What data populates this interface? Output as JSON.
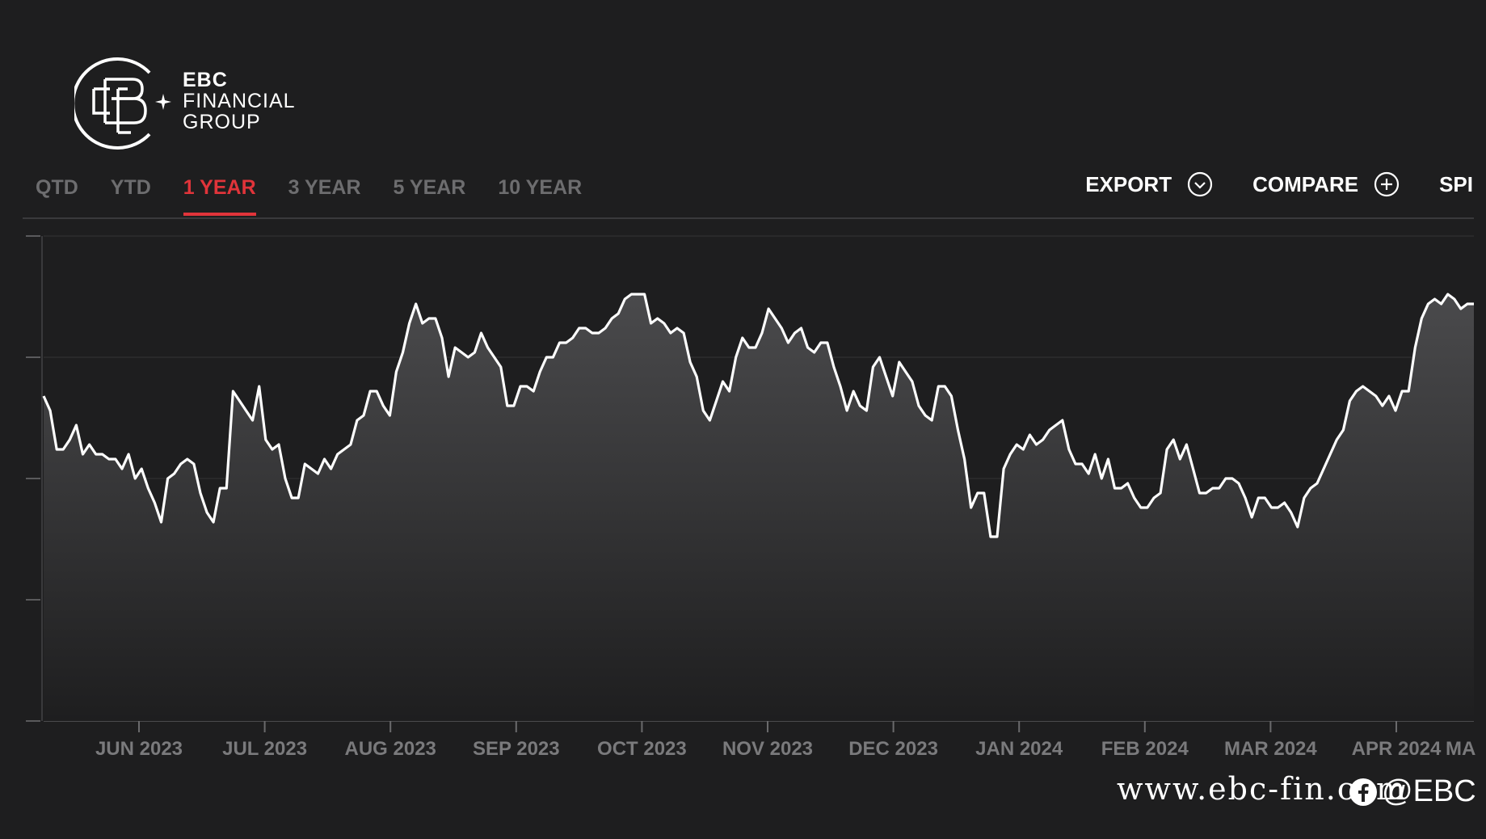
{
  "brand": {
    "line1": "EBC",
    "line2": "FINANCIAL",
    "line3": "GROUP"
  },
  "tabs": [
    {
      "label": "QTD",
      "active": false
    },
    {
      "label": "YTD",
      "active": false
    },
    {
      "label": "1 YEAR",
      "active": true
    },
    {
      "label": "3 YEAR",
      "active": false
    },
    {
      "label": "5 YEAR",
      "active": false
    },
    {
      "label": "10 YEAR",
      "active": false
    }
  ],
  "actions": {
    "export_label": "EXPORT",
    "export_icon": "chevron-down-circle-icon",
    "compare_label": "COMPARE",
    "compare_icon": "plus-circle-icon",
    "spread_label": "SPI"
  },
  "colors": {
    "background": "#1e1e1f",
    "line": "#ffffff",
    "accent": "#e0343a",
    "tab_inactive": "#6d6d6f",
    "axis_text": "#7a7a7c",
    "grid": "#343436"
  },
  "watermark": {
    "url": "www.ebc-fin.com",
    "handle": "@EBC",
    "social_icon": "facebook-icon"
  },
  "chart_data": {
    "type": "area",
    "title": "",
    "xlabel": "",
    "ylabel": "",
    "x_ticks": [
      "JUN 2023",
      "JUL 2023",
      "AUG 2023",
      "SEP 2023",
      "OCT 2023",
      "NOV 2023",
      "DEC 2023",
      "JAN 2024",
      "FEB 2024",
      "MAR 2024",
      "APR 2024",
      "MA"
    ],
    "y_tick_labels_visible": false,
    "y_tick_count": 5,
    "grid": "horizontal",
    "legend": "none",
    "ylim": [
      0,
      100
    ],
    "series": [
      {
        "values": [
          67,
          64,
          56,
          56,
          58,
          61,
          55,
          57,
          55,
          55,
          54,
          54,
          52,
          55,
          50,
          52,
          48,
          45,
          41,
          50,
          51,
          53,
          54,
          53,
          47,
          43,
          41,
          48,
          48,
          68,
          66,
          64,
          62,
          69,
          58,
          56,
          57,
          50,
          46,
          46,
          53,
          52,
          51,
          54,
          52,
          55,
          56,
          57,
          62,
          63,
          68,
          68,
          65,
          63,
          72,
          76,
          82,
          86,
          82,
          83,
          83,
          79,
          71,
          77,
          76,
          75,
          76,
          80,
          77,
          75,
          73,
          65,
          65,
          69,
          69,
          68,
          72,
          75,
          75,
          78,
          78,
          79,
          81,
          81,
          80,
          80,
          81,
          83,
          84,
          87,
          88,
          88,
          88,
          82,
          83,
          82,
          80,
          81,
          80,
          74,
          71,
          64,
          62,
          66,
          70,
          68,
          75,
          79,
          77,
          77,
          80,
          85,
          83,
          81,
          78,
          80,
          81,
          77,
          76,
          78,
          78,
          73,
          69,
          64,
          68,
          65,
          64,
          73,
          75,
          71,
          67,
          74,
          72,
          70,
          65,
          63,
          62,
          69,
          69,
          67,
          60,
          54,
          44,
          47,
          47,
          38,
          38,
          52,
          55,
          57,
          56,
          59,
          57,
          58,
          60,
          61,
          62,
          56,
          53,
          53,
          51,
          55,
          50,
          54,
          48,
          48,
          49,
          46,
          44,
          44,
          46,
          47,
          56,
          58,
          54,
          57,
          52,
          47,
          47,
          48,
          48,
          50,
          50,
          49,
          46,
          42,
          46,
          46,
          44,
          44,
          45,
          43,
          40,
          46,
          48,
          49,
          52,
          55,
          58,
          60,
          66,
          68,
          69,
          68,
          67,
          65,
          67,
          64,
          68,
          68,
          77,
          83,
          86,
          87,
          86,
          88,
          87,
          85,
          86,
          86
        ]
      }
    ]
  }
}
